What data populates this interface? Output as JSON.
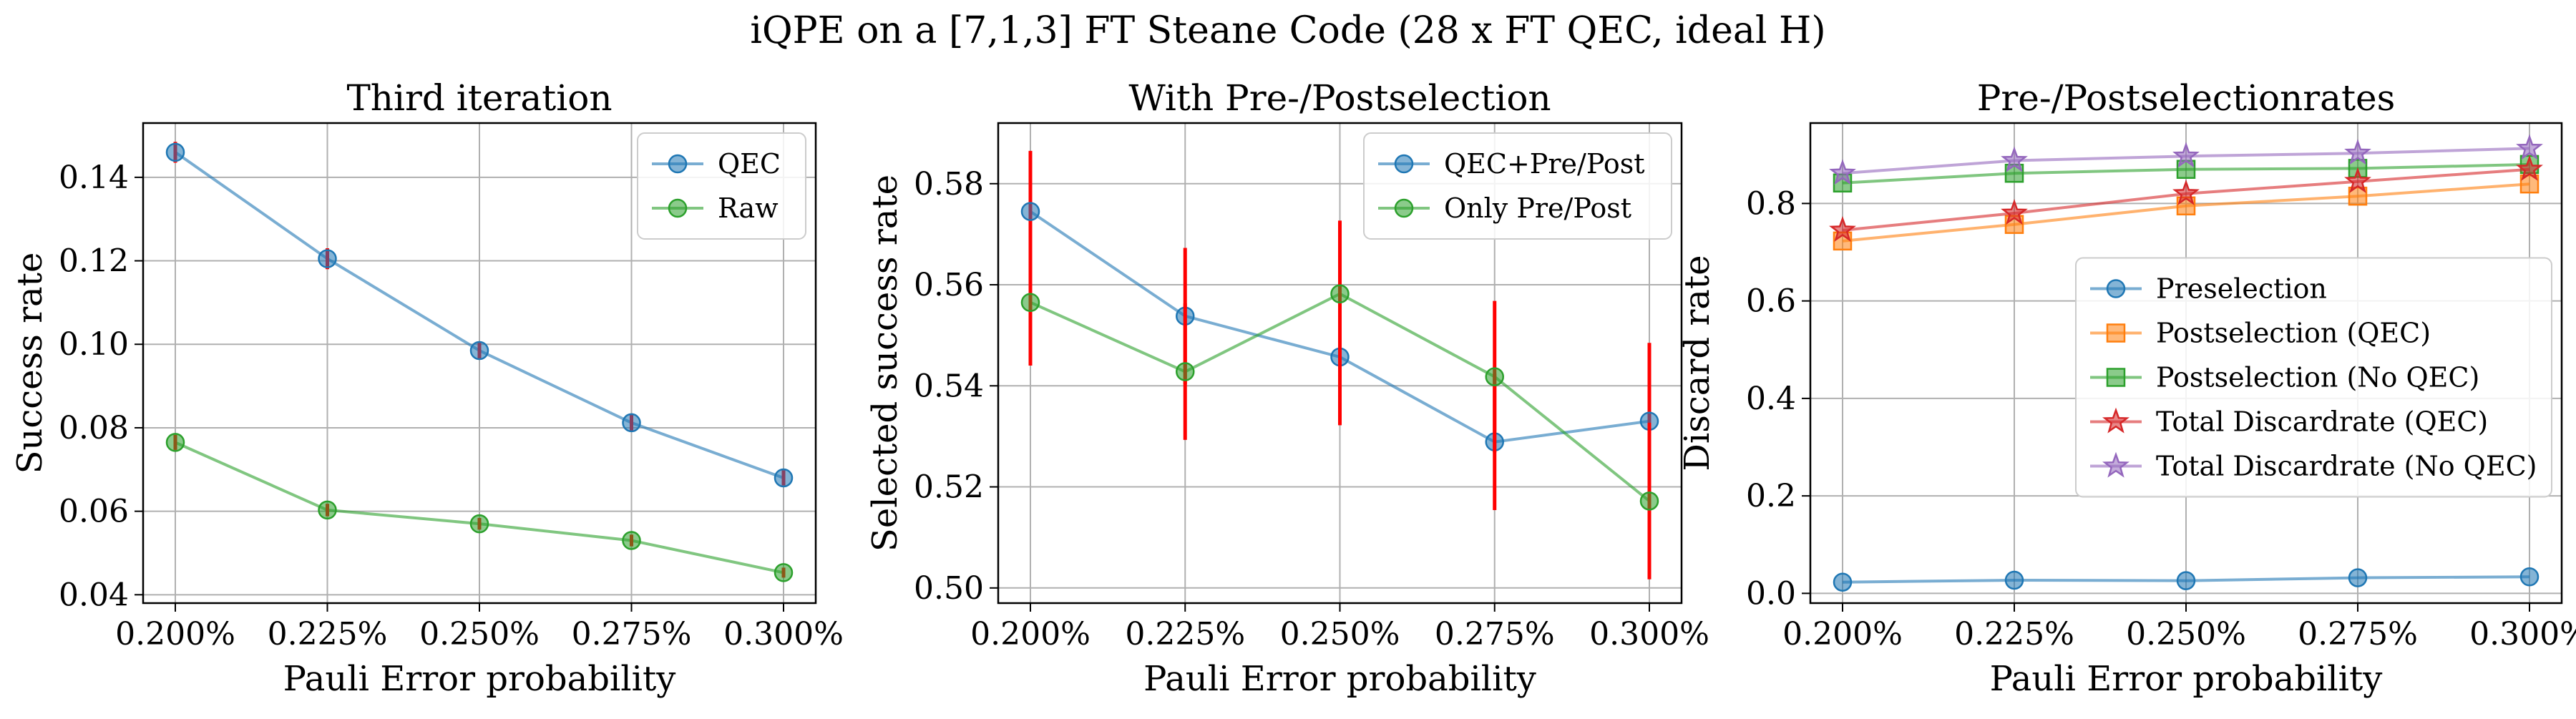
{
  "figure": {
    "suptitle": "iQPE on a [7,1,3] FT Steane Code (28 x FT QEC, ideal H)"
  },
  "colors": {
    "blue": "#1f77b4",
    "orange": "#ff7f0e",
    "green": "#2ca02c",
    "red": "#d62728",
    "purple": "#9467bd",
    "errorbar": "#ff0000",
    "grid": "#b0b0b0"
  },
  "chart_data": [
    {
      "type": "line",
      "title": "Third iteration",
      "xlabel": "Pauli Error probability",
      "ylabel": "Success rate",
      "categories": [
        "0.200%",
        "0.225%",
        "0.250%",
        "0.275%",
        "0.300%"
      ],
      "x": [
        0.2,
        0.225,
        0.25,
        0.275,
        0.3
      ],
      "ylim": [
        0.038,
        0.153
      ],
      "yticks": [
        0.04,
        0.06,
        0.08,
        0.1,
        0.12,
        0.14
      ],
      "ytick_labels": [
        "0.04",
        "0.06",
        "0.08",
        "0.10",
        "0.12",
        "0.14"
      ],
      "grid": true,
      "legend_position": "upper-right",
      "series": [
        {
          "name": "QEC",
          "color": "#1f77b4",
          "marker": "circle",
          "values": [
            0.146,
            0.1205,
            0.0985,
            0.0812,
            0.068
          ],
          "yerr": [
            0.0025,
            0.0025,
            0.0022,
            0.002,
            0.0018
          ]
        },
        {
          "name": "Raw",
          "color": "#2ca02c",
          "marker": "circle",
          "values": [
            0.0765,
            0.0603,
            0.057,
            0.053,
            0.0453
          ],
          "yerr": [
            0.0018,
            0.0015,
            0.0014,
            0.0014,
            0.0012
          ]
        }
      ]
    },
    {
      "type": "line",
      "title": "With Pre-/Postselection",
      "xlabel": "Pauli Error probability",
      "ylabel": "Selected success rate",
      "categories": [
        "0.200%",
        "0.225%",
        "0.250%",
        "0.275%",
        "0.300%"
      ],
      "x": [
        0.2,
        0.225,
        0.25,
        0.275,
        0.3
      ],
      "ylim": [
        0.497,
        0.592
      ],
      "yticks": [
        0.5,
        0.52,
        0.54,
        0.56,
        0.58
      ],
      "ytick_labels": [
        "0.50",
        "0.52",
        "0.54",
        "0.56",
        "0.58"
      ],
      "grid": true,
      "legend_position": "upper-right",
      "series": [
        {
          "name": "QEC+Pre/Post",
          "color": "#1f77b4",
          "marker": "circle",
          "values": [
            0.5745,
            0.5538,
            0.5457,
            0.5289,
            0.533
          ],
          "yerr": [
            0.012,
            0.0135,
            0.0135,
            0.0135,
            0.0155
          ]
        },
        {
          "name": "Only Pre/Post",
          "color": "#2ca02c",
          "marker": "circle",
          "values": [
            0.5565,
            0.5428,
            0.5582,
            0.5418,
            0.5172
          ],
          "yerr": [
            0.0125,
            0.0135,
            0.0145,
            0.015,
            0.0155
          ]
        }
      ]
    },
    {
      "type": "line",
      "title": "Pre-/Postselectionrates",
      "xlabel": "Pauli Error probability",
      "ylabel": "Discard rate",
      "categories": [
        "0.200%",
        "0.225%",
        "0.250%",
        "0.275%",
        "0.300%"
      ],
      "x": [
        0.2,
        0.225,
        0.25,
        0.275,
        0.3
      ],
      "ylim": [
        -0.02,
        0.965
      ],
      "yticks": [
        0.0,
        0.2,
        0.4,
        0.6,
        0.8
      ],
      "ytick_labels": [
        "0.0",
        "0.2",
        "0.4",
        "0.6",
        "0.8"
      ],
      "grid": true,
      "legend_position": "center-right",
      "series": [
        {
          "name": "Preselection",
          "color": "#1f77b4",
          "marker": "circle",
          "values": [
            0.023,
            0.027,
            0.026,
            0.032,
            0.034
          ]
        },
        {
          "name": "Postselection (QEC)",
          "color": "#ff7f0e",
          "marker": "square",
          "values": [
            0.723,
            0.757,
            0.795,
            0.815,
            0.84
          ]
        },
        {
          "name": "Postselection (No QEC)",
          "color": "#2ca02c",
          "marker": "square",
          "values": [
            0.842,
            0.862,
            0.87,
            0.872,
            0.88
          ]
        },
        {
          "name": "Total Discardrate (QEC)",
          "color": "#d62728",
          "marker": "star",
          "values": [
            0.745,
            0.78,
            0.82,
            0.845,
            0.87
          ]
        },
        {
          "name": "Total Discardrate (No QEC)",
          "color": "#9467bd",
          "marker": "star",
          "values": [
            0.862,
            0.888,
            0.897,
            0.903,
            0.913
          ]
        }
      ]
    }
  ]
}
